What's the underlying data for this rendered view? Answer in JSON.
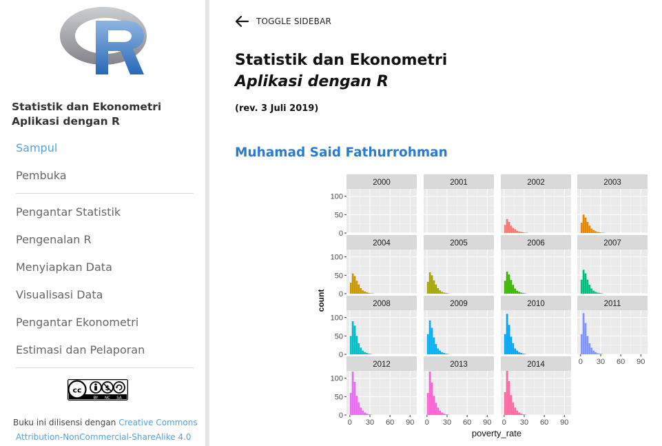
{
  "sidebar": {
    "logo_icon": "r-logo-icon",
    "title_line1": "Statistik dan Ekonometri",
    "title_line2": "Aplikasi dengan R",
    "items": [
      {
        "label": "Sampul",
        "active": true
      },
      {
        "label": "Pembuka"
      },
      {
        "label": "Pengantar Statistik"
      },
      {
        "label": "Pengenalan R"
      },
      {
        "label": "Menyiapkan Data"
      },
      {
        "label": "Visualisasi Data"
      },
      {
        "label": "Pengantar Ekonometri"
      },
      {
        "label": "Estimasi dan Pelaporan"
      }
    ],
    "badge": {
      "cc": "cc",
      "by": "BY",
      "nc": "NC",
      "sa": "SA"
    },
    "license_prefix": "Buku ini dilisensi dengan ",
    "license_link1": "Creative Commons",
    "license_link2": "Attribution-NonCommercial-ShareAlike 4.0"
  },
  "header": {
    "toggle_label": "TOGGLE SIDEBAR",
    "toggle_icon": "arrow-left-icon",
    "title": "Statistik dan Ekonometri",
    "subtitle": "Aplikasi dengan R",
    "revision": "(rev. 3 Juli 2019)",
    "author": "Muhamad Said Fathurrohman"
  },
  "chart_data": {
    "type": "bar",
    "subtype": "faceted-histogram",
    "title": "",
    "xlabel": "poverty_rate",
    "ylabel": "count",
    "x_ticks": [
      "0",
      "30",
      "60",
      "90"
    ],
    "y_ticks": [
      "0",
      "50",
      "100"
    ],
    "xlim": [
      -5,
      100
    ],
    "ylim": [
      0,
      120
    ],
    "grid": true,
    "legend": "none",
    "bin_starts": [
      0,
      3,
      6,
      9,
      12,
      15,
      18,
      21,
      24,
      27,
      30,
      33,
      36,
      39,
      42,
      45
    ],
    "facets": [
      {
        "label": "2000",
        "color": "#f8766d",
        "values": []
      },
      {
        "label": "2001",
        "color": "#f8766d",
        "values": []
      },
      {
        "label": "2002",
        "color": "#f8766d",
        "values": [
          22,
          38,
          30,
          20,
          14,
          10,
          6,
          4,
          3,
          2,
          1,
          1,
          0,
          0,
          0,
          0
        ]
      },
      {
        "label": "2003",
        "color": "#e58700",
        "values": [
          28,
          50,
          42,
          30,
          20,
          12,
          8,
          5,
          3,
          2,
          1,
          1,
          0,
          0,
          0,
          0
        ]
      },
      {
        "label": "2004",
        "color": "#c99800",
        "values": [
          30,
          55,
          48,
          35,
          25,
          15,
          9,
          6,
          4,
          2,
          1,
          1,
          0,
          0,
          0,
          0
        ]
      },
      {
        "label": "2005",
        "color": "#a3a500",
        "values": [
          32,
          58,
          50,
          36,
          25,
          15,
          9,
          5,
          3,
          2,
          1,
          0,
          0,
          0,
          0,
          0
        ]
      },
      {
        "label": "2006",
        "color": "#39b600",
        "values": [
          35,
          60,
          52,
          37,
          24,
          14,
          8,
          5,
          3,
          2,
          1,
          0,
          0,
          0,
          0,
          0
        ]
      },
      {
        "label": "2007",
        "color": "#00bf7d",
        "values": [
          38,
          65,
          55,
          38,
          24,
          14,
          8,
          5,
          3,
          2,
          1,
          0,
          0,
          0,
          0,
          0
        ]
      },
      {
        "label": "2008",
        "color": "#00bfc4",
        "values": [
          50,
          90,
          78,
          50,
          30,
          18,
          10,
          6,
          4,
          2,
          1,
          0,
          0,
          0,
          0,
          0
        ]
      },
      {
        "label": "2009",
        "color": "#00b0f6",
        "values": [
          55,
          92,
          72,
          46,
          28,
          16,
          10,
          6,
          4,
          2,
          1,
          0,
          0,
          0,
          0,
          0
        ]
      },
      {
        "label": "2010",
        "color": "#00a5ff",
        "values": [
          55,
          110,
          80,
          48,
          30,
          16,
          10,
          6,
          4,
          2,
          1,
          0,
          0,
          0,
          0,
          0
        ]
      },
      {
        "label": "2011",
        "color": "#8494ff",
        "values": [
          55,
          112,
          85,
          50,
          30,
          18,
          10,
          6,
          3,
          2,
          1,
          0,
          0,
          0,
          0,
          0
        ]
      },
      {
        "label": "2012",
        "color": "#e76bf3",
        "values": [
          60,
          118,
          90,
          52,
          34,
          20,
          12,
          7,
          4,
          2,
          1,
          0,
          0,
          0,
          0,
          0
        ]
      },
      {
        "label": "2013",
        "color": "#fd61d1",
        "values": [
          60,
          118,
          88,
          52,
          33,
          20,
          12,
          7,
          4,
          2,
          1,
          0,
          0,
          0,
          0,
          0
        ]
      },
      {
        "label": "2014",
        "color": "#ff67a4",
        "values": [
          62,
          120,
          92,
          54,
          34,
          20,
          12,
          7,
          4,
          2,
          1,
          0,
          0,
          0,
          0,
          0
        ]
      }
    ]
  }
}
